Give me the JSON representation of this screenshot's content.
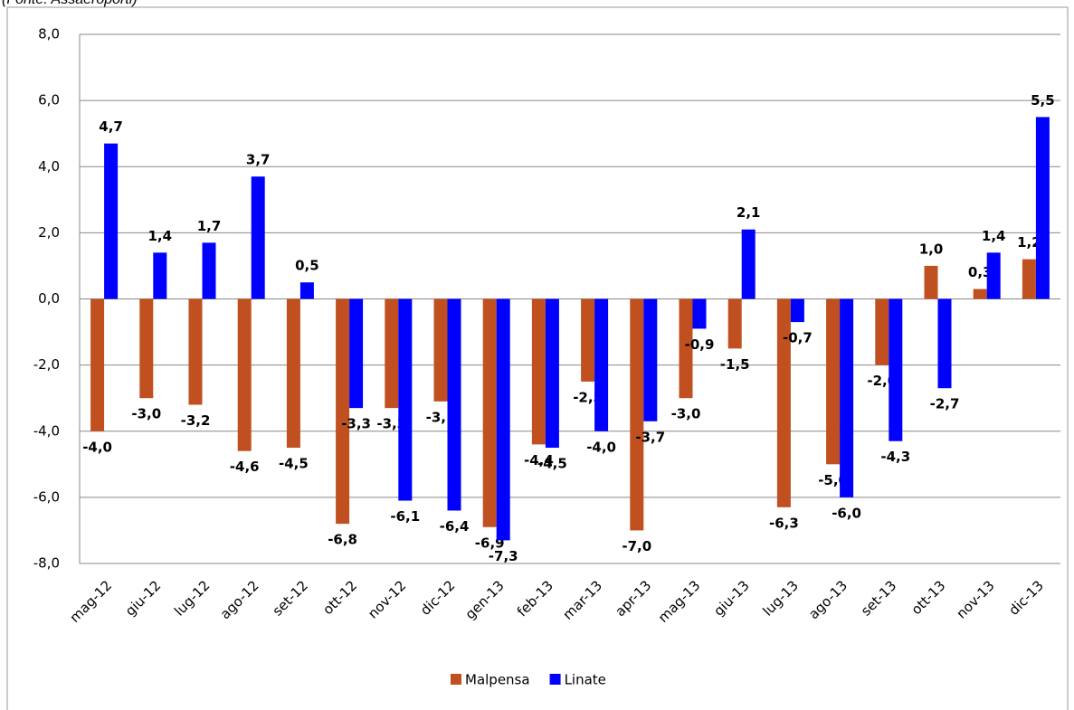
{
  "chart_data": {
    "type": "bar",
    "source": "(Fonte: Assaeroporti)",
    "categories": [
      "mag-12",
      "giu-12",
      "lug-12",
      "ago-12",
      "set-12",
      "ott-12",
      "nov-12",
      "dic-12",
      "gen-13",
      "feb-13",
      "mar-13",
      "apr-13",
      "mag-13",
      "giu-13",
      "lug-13",
      "ago-13",
      "set-13",
      "ott-13",
      "nov-13",
      "dic-13"
    ],
    "series": [
      {
        "name": "Malpensa",
        "color": "#c0501f",
        "values": [
          -4.0,
          -3.0,
          -3.2,
          -4.6,
          -4.5,
          -6.8,
          -3.3,
          -3.1,
          -6.9,
          -4.4,
          -2.5,
          -7.0,
          -3.0,
          -1.5,
          -6.3,
          -5.0,
          -2.0,
          1.0,
          0.3,
          1.2
        ],
        "value_labels": [
          "-4,0",
          "-3,0",
          "-3,2",
          "-4,6",
          "-4,5",
          "-6,8",
          "-3,3",
          "-3,1",
          "-6,9",
          "-4,4",
          "-2,5",
          "-7,0",
          "-3,0",
          "-1,5",
          "-6,3",
          "-5,0",
          "-2,0",
          "1,0",
          "0,3",
          "1,2"
        ]
      },
      {
        "name": "Linate",
        "color": "#0000ff",
        "values": [
          4.7,
          1.4,
          1.7,
          3.7,
          0.5,
          -3.3,
          -6.1,
          -6.4,
          -7.3,
          -4.5,
          -4.0,
          -3.7,
          -0.9,
          2.1,
          -0.7,
          -6.0,
          -4.3,
          -2.7,
          1.4,
          5.5
        ],
        "value_labels": [
          "4,7",
          "1,4",
          "1,7",
          "3,7",
          "0,5",
          "-3,3",
          "-6,1",
          "-6,4",
          "-7,3",
          "-4,5",
          "-4,0",
          "-3,7",
          "-0,9",
          "2,1",
          "-0,7",
          "-6,0",
          "-4,3",
          "-2,7",
          "1,4",
          "5,5"
        ]
      }
    ],
    "ylim": [
      -8,
      8
    ],
    "yticks": [
      {
        "value": -8,
        "label": "-8,0"
      },
      {
        "value": -6,
        "label": "-6,0"
      },
      {
        "value": -4,
        "label": "-4,0"
      },
      {
        "value": -2,
        "label": "-2,0"
      },
      {
        "value": 0,
        "label": "0,0"
      },
      {
        "value": 2,
        "label": "2,0"
      },
      {
        "value": 4,
        "label": "4,0"
      },
      {
        "value": 6,
        "label": "6,0"
      },
      {
        "value": 8,
        "label": "8,0"
      }
    ],
    "grid": true,
    "legend": "bottom"
  }
}
